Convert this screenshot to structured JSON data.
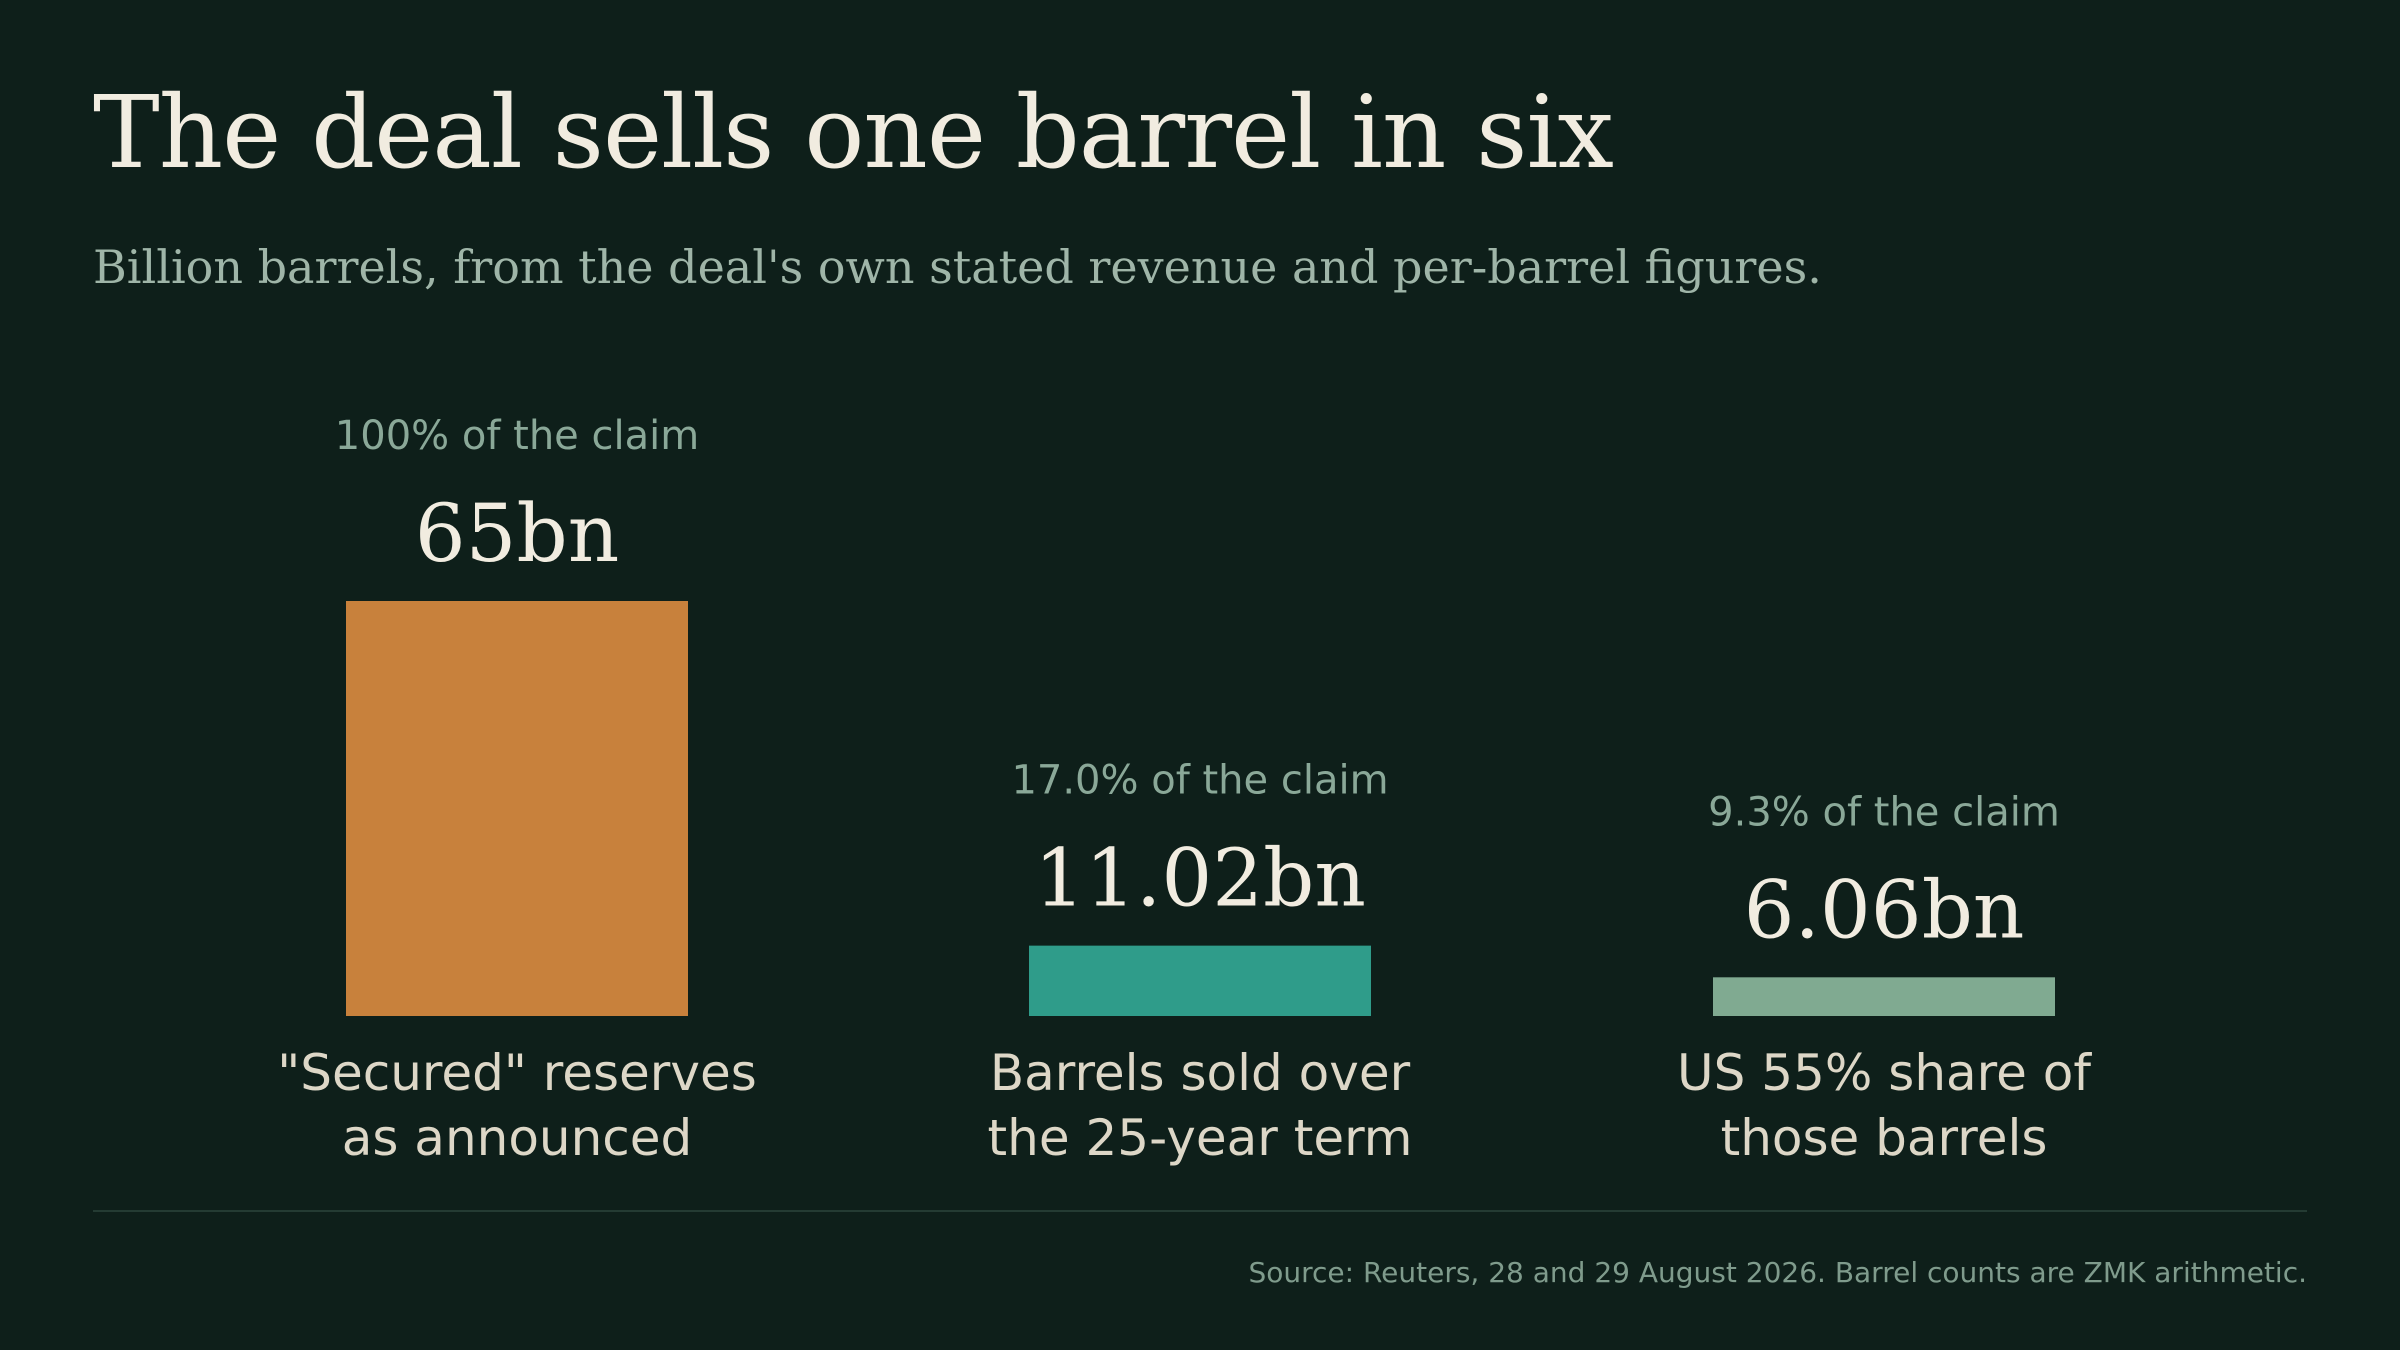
{
  "title": "The deal sells one barrel in six",
  "subtitle": "Billion barrels, from the deal's own stated revenue and per-barrel figures.",
  "source": "Source: Reuters, 28 and 29 August 2026. Barrel counts are ZMK arithmetic.",
  "colors": {
    "background": "#0e1f1a",
    "bar_claim": "#c8813c",
    "bar_sold": "#2f9c8a",
    "bar_us_share": "#80aa91"
  },
  "chart_data": {
    "type": "bar",
    "categories": [
      [
        "\"Secured\" reserves",
        "as announced"
      ],
      [
        "Barrels sold over",
        "the 25-year term"
      ],
      [
        "US 55% share of",
        "those barrels"
      ]
    ],
    "values": [
      65,
      11.02,
      6.06
    ],
    "value_labels": [
      "65bn",
      "11.02bn",
      "6.06bn"
    ],
    "pct_labels": [
      "100% of the claim",
      "17.0% of the claim",
      "9.3% of the claim"
    ],
    "bar_colors": [
      "#c8813c",
      "#2f9c8a",
      "#80aa91"
    ],
    "ylim": [
      0,
      65
    ],
    "grid": false,
    "legend": "none"
  }
}
